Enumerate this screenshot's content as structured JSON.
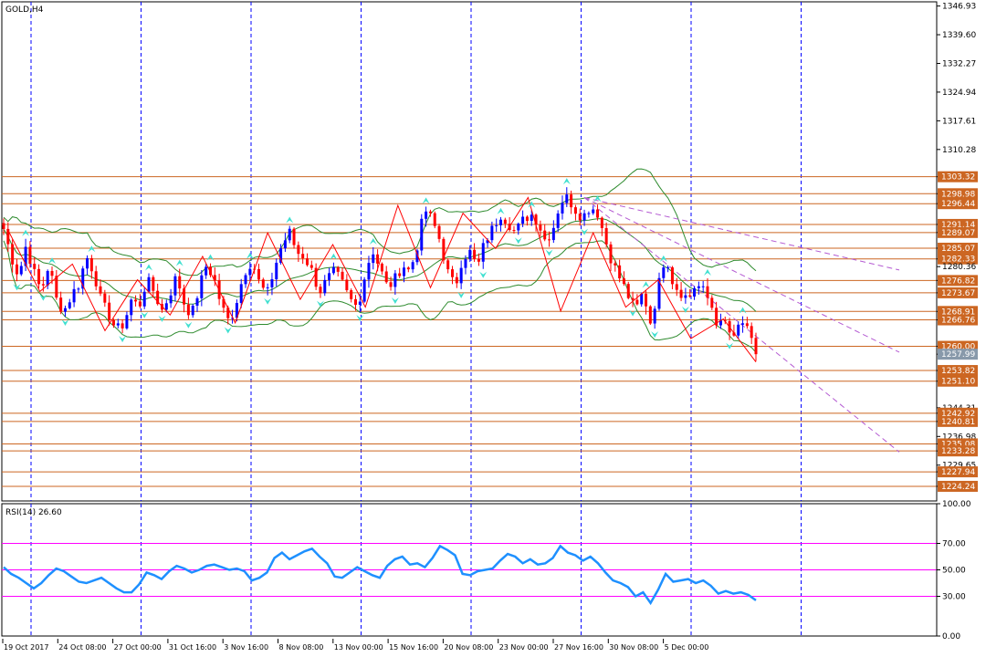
{
  "symbol_label": "GOLD,H4",
  "rsi_label": "RSI(14) 26.60",
  "colors": {
    "background": "#ffffff",
    "frame": "#000000",
    "grid": "#0000ff",
    "bull_candle": "#0000ff",
    "bear_candle": "#ff0000",
    "level_line": "#cc6622",
    "level_label_bg": "#cc6622",
    "current_price_bg": "#8899aa",
    "bands": "#2e8b2e",
    "zigzag": "#ff0000",
    "fractal": "#40e0d0",
    "trend_channel": "#b45ad2",
    "rsi_line": "#1e90ff",
    "rsi_levels": "#ff00ff"
  },
  "chart_data": [
    {
      "type": "candlestick",
      "title": "GOLD,H4",
      "ylim": [
        1220.5,
        1348.0
      ],
      "price_axis_ticks": [
        1346.93,
        1339.6,
        1332.27,
        1324.94,
        1317.61,
        1310.28,
        1303.32,
        1298.98,
        1296.44,
        1291.14,
        1289.07,
        1285.07,
        1282.33,
        1280.36,
        1276.82,
        1273.67,
        1268.91,
        1266.76,
        1260.0,
        1257.99,
        1253.82,
        1251.1,
        1244.31,
        1242.92,
        1240.81,
        1236.98,
        1235.08,
        1233.28,
        1229.65,
        1227.94,
        1224.24
      ],
      "highlighted_levels": [
        1303.32,
        1298.98,
        1296.44,
        1291.14,
        1289.07,
        1285.07,
        1282.33,
        1276.82,
        1273.67,
        1268.91,
        1266.76,
        1260.0,
        1253.82,
        1251.1,
        1242.92,
        1240.81,
        1235.08,
        1233.28,
        1227.94,
        1224.24
      ],
      "current_price": 1257.99,
      "time_axis_labels": [
        "19 Oct 2017",
        "24 Oct 08:00",
        "27 Oct 00:00",
        "31 Oct 16:00",
        "3 Nov 16:00",
        "8 Nov 08:00",
        "13 Nov 00:00",
        "15 Nov 16:00",
        "20 Nov 08:00",
        "23 Nov 00:00",
        "27 Nov 16:00",
        "30 Nov 08:00",
        "5 Dec 00:00"
      ],
      "close_path": [
        1290,
        1283,
        1278,
        1286,
        1279,
        1274,
        1281,
        1272,
        1269,
        1273,
        1276,
        1283,
        1279,
        1271,
        1268,
        1264,
        1266,
        1272,
        1270,
        1277,
        1274,
        1269,
        1273,
        1278,
        1271,
        1268,
        1275,
        1281,
        1277,
        1270,
        1266,
        1272,
        1279,
        1282,
        1276,
        1273,
        1280,
        1286,
        1289,
        1284,
        1283,
        1279,
        1274,
        1277,
        1279,
        1276,
        1272,
        1270,
        1278,
        1285,
        1280,
        1275,
        1277,
        1281,
        1279,
        1286,
        1295,
        1292,
        1287,
        1279,
        1275,
        1283,
        1284,
        1280,
        1287,
        1290,
        1294,
        1292,
        1289,
        1292,
        1294,
        1292,
        1287,
        1290,
        1297,
        1298,
        1295,
        1293,
        1296,
        1294,
        1287,
        1281,
        1277,
        1273,
        1269,
        1274,
        1266,
        1275,
        1284,
        1276,
        1274,
        1272,
        1276,
        1274,
        1271,
        1265,
        1266,
        1261,
        1267,
        1263,
        1258
      ],
      "zigzag_path": [
        1290,
        1274,
        1281,
        1264,
        1277,
        1268,
        1283,
        1266,
        1289,
        1272,
        1286,
        1270,
        1296,
        1275,
        1294,
        1285,
        1298,
        1269,
        1289,
        1270,
        1277,
        1262,
        1267,
        1256
      ],
      "trend_channel": {
        "start_price": 1298.0,
        "end_price_upper": 1279.5,
        "end_price_middle": 1258.5,
        "end_price_lower": 1233.0
      }
    },
    {
      "type": "line",
      "title": "RSI(14) 26.60",
      "ylim": [
        0,
        100
      ],
      "axis_ticks": [
        "100.00",
        "70.00",
        "50.00",
        "30.00",
        "0.00"
      ],
      "levels": [
        70,
        50,
        30
      ],
      "last_value": 26.6,
      "series": [
        {
          "values": [
            52,
            47,
            44,
            40,
            36,
            40,
            46,
            51,
            49,
            45,
            41,
            40,
            42,
            44,
            40,
            36,
            33,
            33,
            39,
            48,
            46,
            43,
            49,
            53,
            51,
            48,
            50,
            53,
            54,
            52,
            50,
            51,
            49,
            42,
            44,
            48,
            59,
            63,
            58,
            61,
            64,
            66,
            60,
            55,
            45,
            44,
            48,
            52,
            49,
            46,
            44,
            53,
            58,
            60,
            54,
            55,
            52,
            59,
            68,
            65,
            61,
            47,
            46,
            49,
            50,
            51,
            57,
            62,
            60,
            55,
            58,
            54,
            55,
            59,
            68,
            63,
            61,
            57,
            60,
            55,
            48,
            42,
            40,
            37,
            30,
            33,
            25,
            35,
            47,
            41,
            42,
            43,
            40,
            42,
            38,
            32,
            34,
            32,
            33,
            31,
            27
          ]
        }
      ]
    }
  ]
}
